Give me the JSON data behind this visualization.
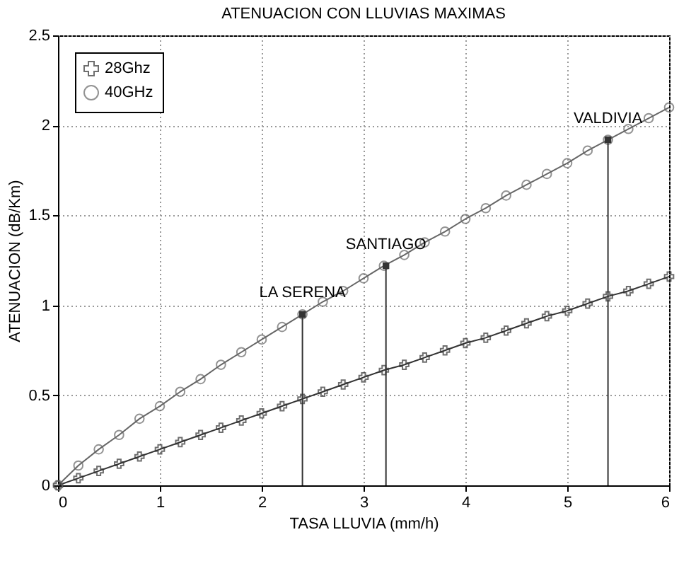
{
  "chart_data": {
    "type": "line",
    "title": "ATENUACION CON LLUVIAS MAXIMAS",
    "xlabel": "TASA LLUVIA (mm/h)",
    "ylabel": "ATENUACION (dB/Km)",
    "x": [
      0,
      0.2,
      0.4,
      0.6,
      0.8,
      1,
      1.2,
      1.4,
      1.6,
      1.8,
      2,
      2.2,
      2.4,
      2.6,
      2.8,
      3,
      3.2,
      3.4,
      3.6,
      3.8,
      4,
      4.2,
      4.4,
      4.6,
      4.8,
      5,
      5.2,
      5.4,
      5.6,
      5.8,
      6
    ],
    "series": [
      {
        "name": "28Ghz",
        "color": "#333333",
        "marker": "cross",
        "values": [
          0,
          0.04,
          0.08,
          0.12,
          0.16,
          0.2,
          0.24,
          0.28,
          0.32,
          0.36,
          0.4,
          0.44,
          0.48,
          0.52,
          0.56,
          0.6,
          0.64,
          0.67,
          0.71,
          0.75,
          0.79,
          0.82,
          0.86,
          0.9,
          0.94,
          0.97,
          1.01,
          1.05,
          1.08,
          1.12,
          1.16
        ]
      },
      {
        "name": "40GHz",
        "color": "#666666",
        "marker": "circle",
        "values": [
          0,
          0.11,
          0.2,
          0.28,
          0.37,
          0.44,
          0.52,
          0.59,
          0.67,
          0.74,
          0.81,
          0.88,
          0.95,
          1.02,
          1.08,
          1.15,
          1.22,
          1.28,
          1.35,
          1.41,
          1.48,
          1.54,
          1.61,
          1.67,
          1.73,
          1.79,
          1.86,
          1.92,
          1.98,
          2.04,
          2.1
        ]
      },
      {
        "type": "lollipop",
        "color": "#333333",
        "x": [
          2.4,
          3.22,
          5.4
        ],
        "values": [
          0.95,
          1.22,
          1.92
        ],
        "value_labels": [
          "LA SERENA",
          "SANTIAGO",
          "VALDIVIA"
        ]
      }
    ],
    "xlim": [
      0,
      6
    ],
    "xticks": [
      {
        "value": 0,
        "label": "0"
      },
      {
        "value": 1,
        "label": "1"
      },
      {
        "value": 2,
        "label": "2"
      },
      {
        "value": 3,
        "label": "3"
      },
      {
        "value": 4,
        "label": "4"
      },
      {
        "value": 5,
        "label": "5"
      },
      {
        "value": 6,
        "label": "6"
      }
    ],
    "ylim": [
      0,
      2.5
    ],
    "yticks": [
      {
        "value": 0,
        "label": "0"
      },
      0.5,
      {
        "value": 1,
        "label": "1"
      },
      1.5,
      {
        "value": 2,
        "label": "2"
      },
      2.5
    ],
    "grid": true,
    "legend": "top left",
    "line_style": "solid"
  }
}
